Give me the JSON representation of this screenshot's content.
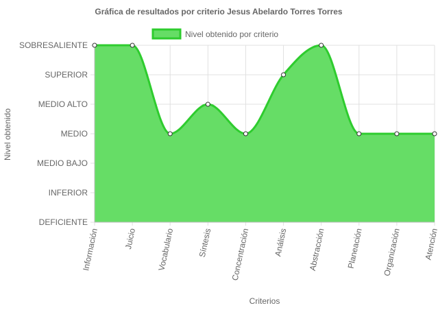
{
  "chart_data": {
    "type": "area",
    "title": "Gráfica de resultados por criterio Jesus Abelardo Torres Torres",
    "xlabel": "Criterios",
    "ylabel": "Nivel obtenido",
    "categories": [
      "Información",
      "Juicio",
      "Vocabulario",
      "Síntesis",
      "Concentración",
      "Análisis",
      "Abstracción",
      "Planeación",
      "Organización",
      "Atención"
    ],
    "y_levels": [
      "DEFICIENTE",
      "INFERIOR",
      "MEDIO BAJO",
      "MEDIO",
      "MEDIO ALTO",
      "SUPERIOR",
      "SOBRESALIENTE"
    ],
    "series": [
      {
        "name": "Nivel obtenido por criterio",
        "values": [
          6,
          6,
          3,
          4,
          3,
          5,
          6,
          3,
          3,
          3
        ],
        "fill_color": "#66dd66",
        "line_color": "#2ecc2e"
      }
    ],
    "ylim": [
      0,
      6
    ],
    "grid": true,
    "legend_position": "top"
  }
}
